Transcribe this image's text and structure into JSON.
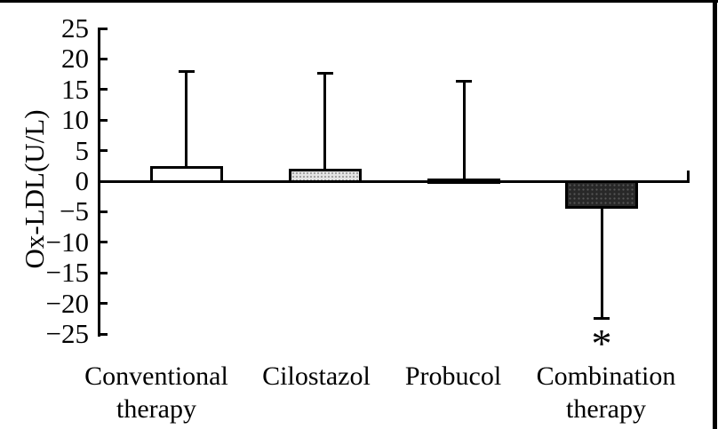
{
  "chart_data": {
    "type": "bar",
    "title": "",
    "xlabel": "",
    "ylabel": "Ox-LDL(U/L)",
    "ylim": [
      -25,
      25
    ],
    "ytick_step": 5,
    "yticks": [
      25,
      20,
      15,
      10,
      5,
      0,
      -5,
      -10,
      -15,
      -20,
      -25
    ],
    "ytick_labels": [
      "25",
      "20",
      "15",
      "10",
      "5",
      "0",
      "−5",
      "−10",
      "−15",
      "−20",
      "−25"
    ],
    "categories": [
      "Conventional therapy",
      "Cilostazol",
      "Probucol",
      "Combination therapy"
    ],
    "category_lines": [
      [
        "Conventional",
        "therapy"
      ],
      [
        "Cilostazol"
      ],
      [
        "Probucol"
      ],
      [
        "Combination",
        "therapy"
      ]
    ],
    "values": [
      2.4,
      2.0,
      0.4,
      -4.5
    ],
    "error_whisker_ends": [
      18,
      17.6,
      16.4,
      -22.5
    ],
    "bar_styles": [
      "white",
      "light-dotted",
      "dark-dotted",
      "dark-dotted"
    ],
    "annotations": [
      {
        "text": "*",
        "category": "Combination therapy",
        "position": "below-lower-error-bar"
      }
    ],
    "legend": null,
    "grid": false
  },
  "colors": {
    "background": "#ffffff",
    "axis": "#000000",
    "bar_white_fill": "#ffffff",
    "bar_light_fill": "#e4e4e4",
    "bar_light_dot": "#9a9a9a",
    "bar_dark_fill": "#282828",
    "bar_dark_dot": "#585858"
  }
}
